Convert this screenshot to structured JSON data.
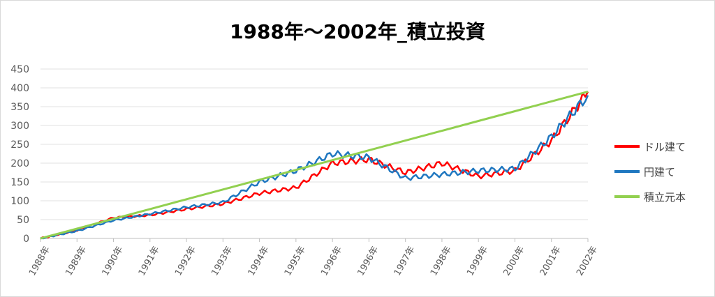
{
  "chart_data": {
    "type": "line",
    "title": "1988年～2002年_積立投資",
    "ylim": [
      0,
      450
    ],
    "yticks": [
      0,
      50,
      100,
      150,
      200,
      250,
      300,
      350,
      400,
      450
    ],
    "categories": [
      "1988年",
      "1989年",
      "1990年",
      "1991年",
      "1992年",
      "1993年",
      "1994年",
      "1995年",
      "1996年",
      "1996年",
      "1997年",
      "1998年",
      "1999年",
      "2000年",
      "2001年",
      "2002年"
    ],
    "grid": true,
    "legend_position": "right",
    "series": [
      {
        "name": "ドル建て",
        "color": "#ff0000",
        "values": [
          0,
          22,
          55,
          62,
          78,
          92,
          120,
          135,
          200,
          210,
          175,
          200,
          165,
          180,
          260,
          390
        ]
      },
      {
        "name": "円建て",
        "color": "#1f77c0",
        "values": [
          0,
          20,
          48,
          65,
          83,
          96,
          150,
          180,
          225,
          215,
          160,
          170,
          180,
          185,
          270,
          380
        ]
      },
      {
        "name": "積立元本",
        "color": "#92d050",
        "values": [
          0,
          26,
          52,
          78,
          104,
          130,
          156,
          182,
          208,
          234,
          260,
          286,
          312,
          338,
          364,
          390
        ]
      }
    ]
  }
}
